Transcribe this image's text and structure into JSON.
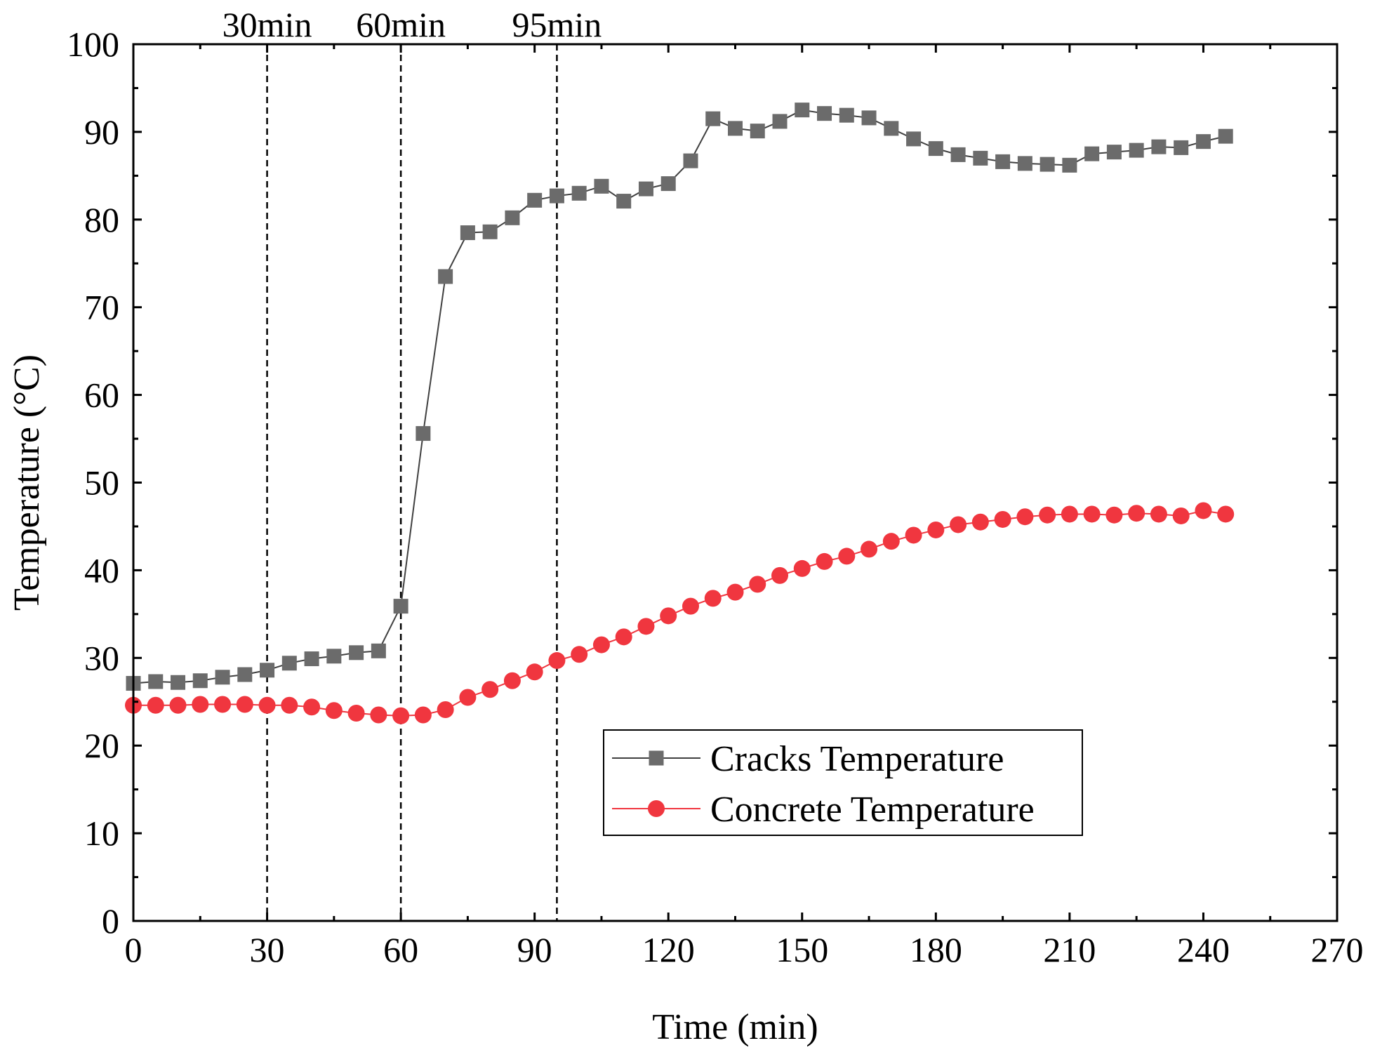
{
  "chart_data": {
    "type": "line",
    "title": "",
    "xlabel": "Time (min)",
    "ylabel": "Temperature (°C)",
    "xlim": [
      0,
      270
    ],
    "ylim": [
      0,
      100
    ],
    "xticks": [
      0,
      30,
      60,
      90,
      120,
      150,
      180,
      210,
      240,
      270
    ],
    "yticks": [
      0,
      10,
      20,
      30,
      40,
      50,
      60,
      70,
      80,
      90,
      100
    ],
    "xtick_labels": [
      "0",
      "30",
      "60",
      "90",
      "120",
      "150",
      "180",
      "210",
      "240",
      "270"
    ],
    "ytick_labels": [
      "0",
      "10",
      "20",
      "30",
      "40",
      "50",
      "60",
      "70",
      "80",
      "90",
      "100"
    ],
    "grid": false,
    "legend_position": "bottom-right",
    "vlines": [
      {
        "x": 30,
        "label": "30min"
      },
      {
        "x": 60,
        "label": "60min"
      },
      {
        "x": 95,
        "label": "95min"
      }
    ],
    "series": [
      {
        "name": "Cracks Temperature",
        "marker": "square",
        "color": "#6b6b6b",
        "line_color": "#404040",
        "x": [
          0,
          5,
          10,
          15,
          20,
          25,
          30,
          35,
          40,
          45,
          50,
          55,
          60,
          65,
          70,
          75,
          80,
          85,
          90,
          95,
          100,
          105,
          110,
          115,
          120,
          125,
          130,
          135,
          140,
          145,
          150,
          155,
          160,
          165,
          170,
          175,
          180,
          185,
          190,
          195,
          200,
          205,
          210,
          215,
          220,
          225,
          230,
          235,
          240,
          245
        ],
        "values": [
          27.1,
          27.3,
          27.2,
          27.4,
          27.8,
          28.1,
          28.6,
          29.4,
          29.9,
          30.2,
          30.6,
          30.8,
          35.9,
          55.6,
          73.5,
          78.5,
          78.6,
          80.2,
          82.2,
          82.7,
          83.0,
          83.8,
          82.1,
          83.5,
          84.1,
          86.7,
          91.5,
          90.4,
          90.1,
          91.2,
          92.5,
          92.1,
          91.9,
          91.6,
          90.4,
          89.2,
          88.1,
          87.4,
          87.0,
          86.6,
          86.4,
          86.3,
          86.2,
          87.5,
          87.7,
          87.9,
          88.3,
          88.2,
          88.9,
          89.5
        ]
      },
      {
        "name": "Concrete Temperature",
        "marker": "circle",
        "color": "#f0363f",
        "line_color": "#f0363f",
        "x": [
          0,
          5,
          10,
          15,
          20,
          25,
          30,
          35,
          40,
          45,
          50,
          55,
          60,
          65,
          70,
          75,
          80,
          85,
          90,
          95,
          100,
          105,
          110,
          115,
          120,
          125,
          130,
          135,
          140,
          145,
          150,
          155,
          160,
          165,
          170,
          175,
          180,
          185,
          190,
          195,
          200,
          205,
          210,
          215,
          220,
          225,
          230,
          235,
          240,
          245
        ],
        "values": [
          24.6,
          24.6,
          24.6,
          24.7,
          24.7,
          24.7,
          24.6,
          24.6,
          24.4,
          24.0,
          23.7,
          23.5,
          23.4,
          23.5,
          24.1,
          25.5,
          26.4,
          27.4,
          28.4,
          29.7,
          30.4,
          31.5,
          32.4,
          33.6,
          34.8,
          35.9,
          36.8,
          37.5,
          38.4,
          39.4,
          40.2,
          41.0,
          41.6,
          42.4,
          43.3,
          44.0,
          44.6,
          45.2,
          45.5,
          45.8,
          46.1,
          46.3,
          46.4,
          46.4,
          46.3,
          46.5,
          46.4,
          46.2,
          46.8,
          46.4
        ]
      }
    ]
  }
}
